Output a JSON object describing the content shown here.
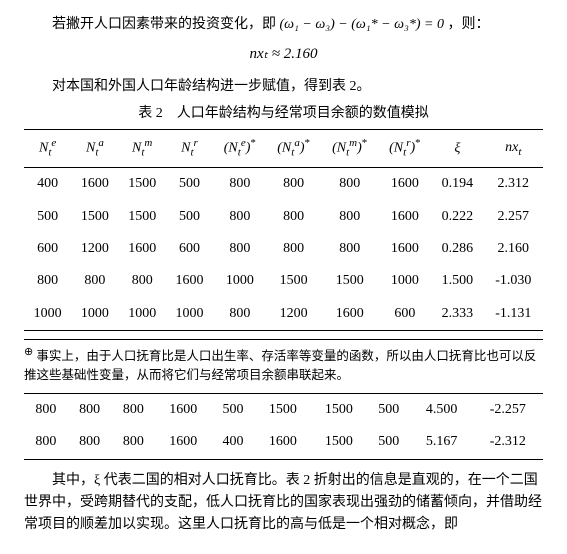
{
  "text": {
    "p1_a": "若撇开人口因素带来的投资变化，即 ",
    "p1_formula": "(ω₁ − ω₃) − (ω₁* − ω₃*) = 0",
    "p1_b": " ，则：",
    "formula1": "nxₜ ≈ 2.160",
    "p2": "对本国和外国人口年龄结构进一步赋值，得到表 2。",
    "caption": "表 2　人口年龄结构与经常项目余额的数值模拟",
    "footnote": "事实上，由于人口抚育比是人口出生率、存活率等变量的函数，所以由人口抚育比也可以反推这些基础性变量，从而将它们与经常项目余额串联起来。",
    "p3": "其中，ξ 代表二国的相对人口抚育比。表 2 折射出的信息是直观的，在一个二国世界中，受跨期替代的支配，低人口抚育比的国家表现出强劲的储蓄倾向，并借助经常项目的顺差加以实现。这里人口抚育比的高与低是一个相对概念，即"
  },
  "table": {
    "headers": [
      "Nₜᵉ",
      "Nₜᵃ",
      "Nₜᵐ",
      "Nₜʳ",
      "(Nₜᵉ)*",
      "(Nₜᵃ)*",
      "(Nₜᵐ)*",
      "(Nₜʳ)*",
      "ξ",
      "nxₜ"
    ],
    "rows": [
      [
        "400",
        "1600",
        "1500",
        "500",
        "800",
        "800",
        "800",
        "1600",
        "0.194",
        "2.312"
      ],
      [
        "500",
        "1500",
        "1500",
        "500",
        "800",
        "800",
        "800",
        "1600",
        "0.222",
        "2.257"
      ],
      [
        "600",
        "1200",
        "1600",
        "600",
        "800",
        "800",
        "800",
        "1600",
        "0.286",
        "2.160"
      ],
      [
        "800",
        "800",
        "800",
        "1600",
        "1000",
        "1500",
        "1500",
        "1000",
        "1.500",
        "-1.030"
      ],
      [
        "1000",
        "1000",
        "1000",
        "1000",
        "800",
        "1200",
        "1600",
        "600",
        "2.333",
        "-1.131"
      ]
    ],
    "rows2": [
      [
        "800",
        "800",
        "800",
        "1600",
        "500",
        "1500",
        "1500",
        "500",
        "4.500",
        "-2.257"
      ],
      [
        "800",
        "800",
        "800",
        "1600",
        "400",
        "1600",
        "1500",
        "500",
        "5.167",
        "-2.312"
      ]
    ]
  }
}
